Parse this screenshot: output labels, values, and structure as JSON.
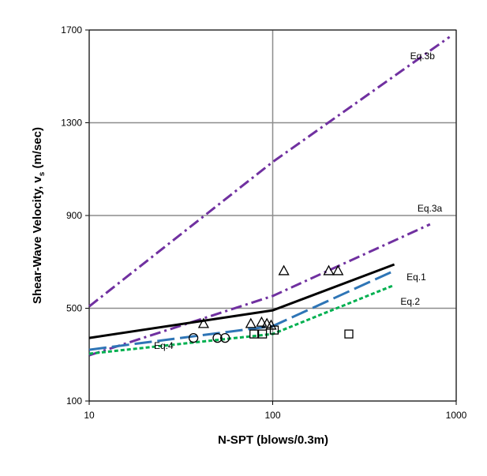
{
  "chart_data": {
    "type": "line",
    "x_label": "N-SPT (blows/0.3m)",
    "y_label": [
      "Shear-Wave Velocity, v",
      "s",
      " (m/sec)"
    ],
    "xlim": [
      10,
      1000
    ],
    "xticks": [
      10,
      100,
      1000
    ],
    "xscale": "log",
    "ylim": [
      100,
      1700
    ],
    "yticks": [
      100,
      500,
      900,
      1300,
      1700
    ],
    "grid": true,
    "series": [
      {
        "name": "Eq.3b",
        "color": "#7030a0",
        "dash": "14 5 3 5",
        "width": 3,
        "x": [
          10,
          100,
          920
        ],
        "values": [
          508,
          1131,
          1670
        ]
      },
      {
        "name": "Eq.3a",
        "color": "#7030a0",
        "dash": "14 5 3 5",
        "width": 3,
        "x": [
          10,
          100,
          720
        ],
        "values": [
          297,
          553,
          862
        ]
      },
      {
        "name": "Eq.1",
        "color": "#2e75b6",
        "dash": "22 7",
        "width": 3,
        "x": [
          10,
          100,
          440
        ],
        "values": [
          321,
          423,
          655
        ]
      },
      {
        "name": "Eq.2",
        "color": "#00b050",
        "dash": "5 3",
        "width": 3,
        "x": [
          10,
          100,
          450
        ],
        "values": [
          304,
          389,
          597
        ]
      },
      {
        "name": "Eq.4",
        "color": "#000000",
        "dash": "",
        "width": 3,
        "x": [
          10,
          100,
          460
        ],
        "values": [
          372,
          491,
          689
        ]
      }
    ],
    "points": [
      {
        "marker": "triangle",
        "x": [
          42,
          76,
          87,
          93,
          98,
          115,
          202,
          227
        ],
        "values": [
          434,
          434,
          440,
          434,
          427,
          662,
          662,
          662
        ]
      },
      {
        "marker": "circle",
        "x": [
          37,
          50,
          55
        ],
        "values": [
          372,
          372,
          372
        ]
      },
      {
        "marker": "square",
        "x": [
          79,
          88,
          102,
          260
        ],
        "values": [
          389,
          389,
          406,
          389
        ]
      }
    ]
  }
}
